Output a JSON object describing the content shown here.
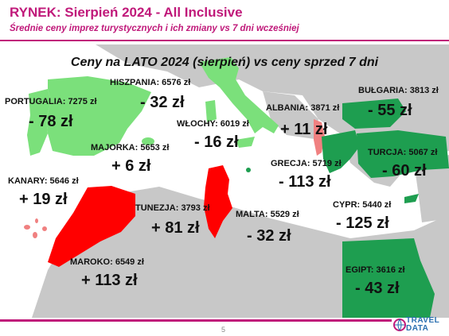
{
  "header": {
    "title": "RYNEK: Sierpień 2024 - All Inclusive",
    "subtitle": "Średnie ceny imprez turystycznych i ich zmiany vs 7 dni wcześniej"
  },
  "map": {
    "title": "Ceny na LATO 2024 (sierpień) vs ceny sprzed 7 dni",
    "colors": {
      "price_increase": "#ff0000",
      "increase_light": "#f08080",
      "decrease_light": "#7be07b",
      "decrease_dark": "#1e9e50",
      "land": "#c8c8c8",
      "sea": "#ffffff"
    },
    "destinations": [
      {
        "label": "PORTUGALIA: 7275 zł",
        "change": "- 78 zł"
      },
      {
        "label": "HISZPANIA: 6576 zł",
        "change": "- 32 zł"
      },
      {
        "label": "WŁOCHY: 6019 zł",
        "change": "- 16 zł"
      },
      {
        "label": "ALBANIA: 3871 zł",
        "change": "+ 11 zł"
      },
      {
        "label": "BUŁGARIA: 3813 zł",
        "change": "- 55 zł"
      },
      {
        "label": "MAJORKA: 5653 zł",
        "change": "+ 6 zł"
      },
      {
        "label": "TURCJA: 5067 zł",
        "change": "- 60 zł"
      },
      {
        "label": "KANARY: 5646 zł",
        "change": "+ 19 zł"
      },
      {
        "label": "GRECJA: 5719 zł",
        "change": "- 113 zł"
      },
      {
        "label": "TUNEZJA: 3793 zł",
        "change": "+ 81 zł"
      },
      {
        "label": "MALTA: 5529 zł",
        "change": "- 32 zł"
      },
      {
        "label": "CYPR: 5440 zł",
        "change": "- 125 zł"
      },
      {
        "label": "MAROKO: 6549 zł",
        "change": "+ 113 zł"
      },
      {
        "label": "EGIPT: 3616 zł",
        "change": "- 43 zł"
      }
    ]
  },
  "footer": {
    "page_number": "5",
    "logo_line1": "TRAVEL",
    "logo_line2": "DATA"
  }
}
